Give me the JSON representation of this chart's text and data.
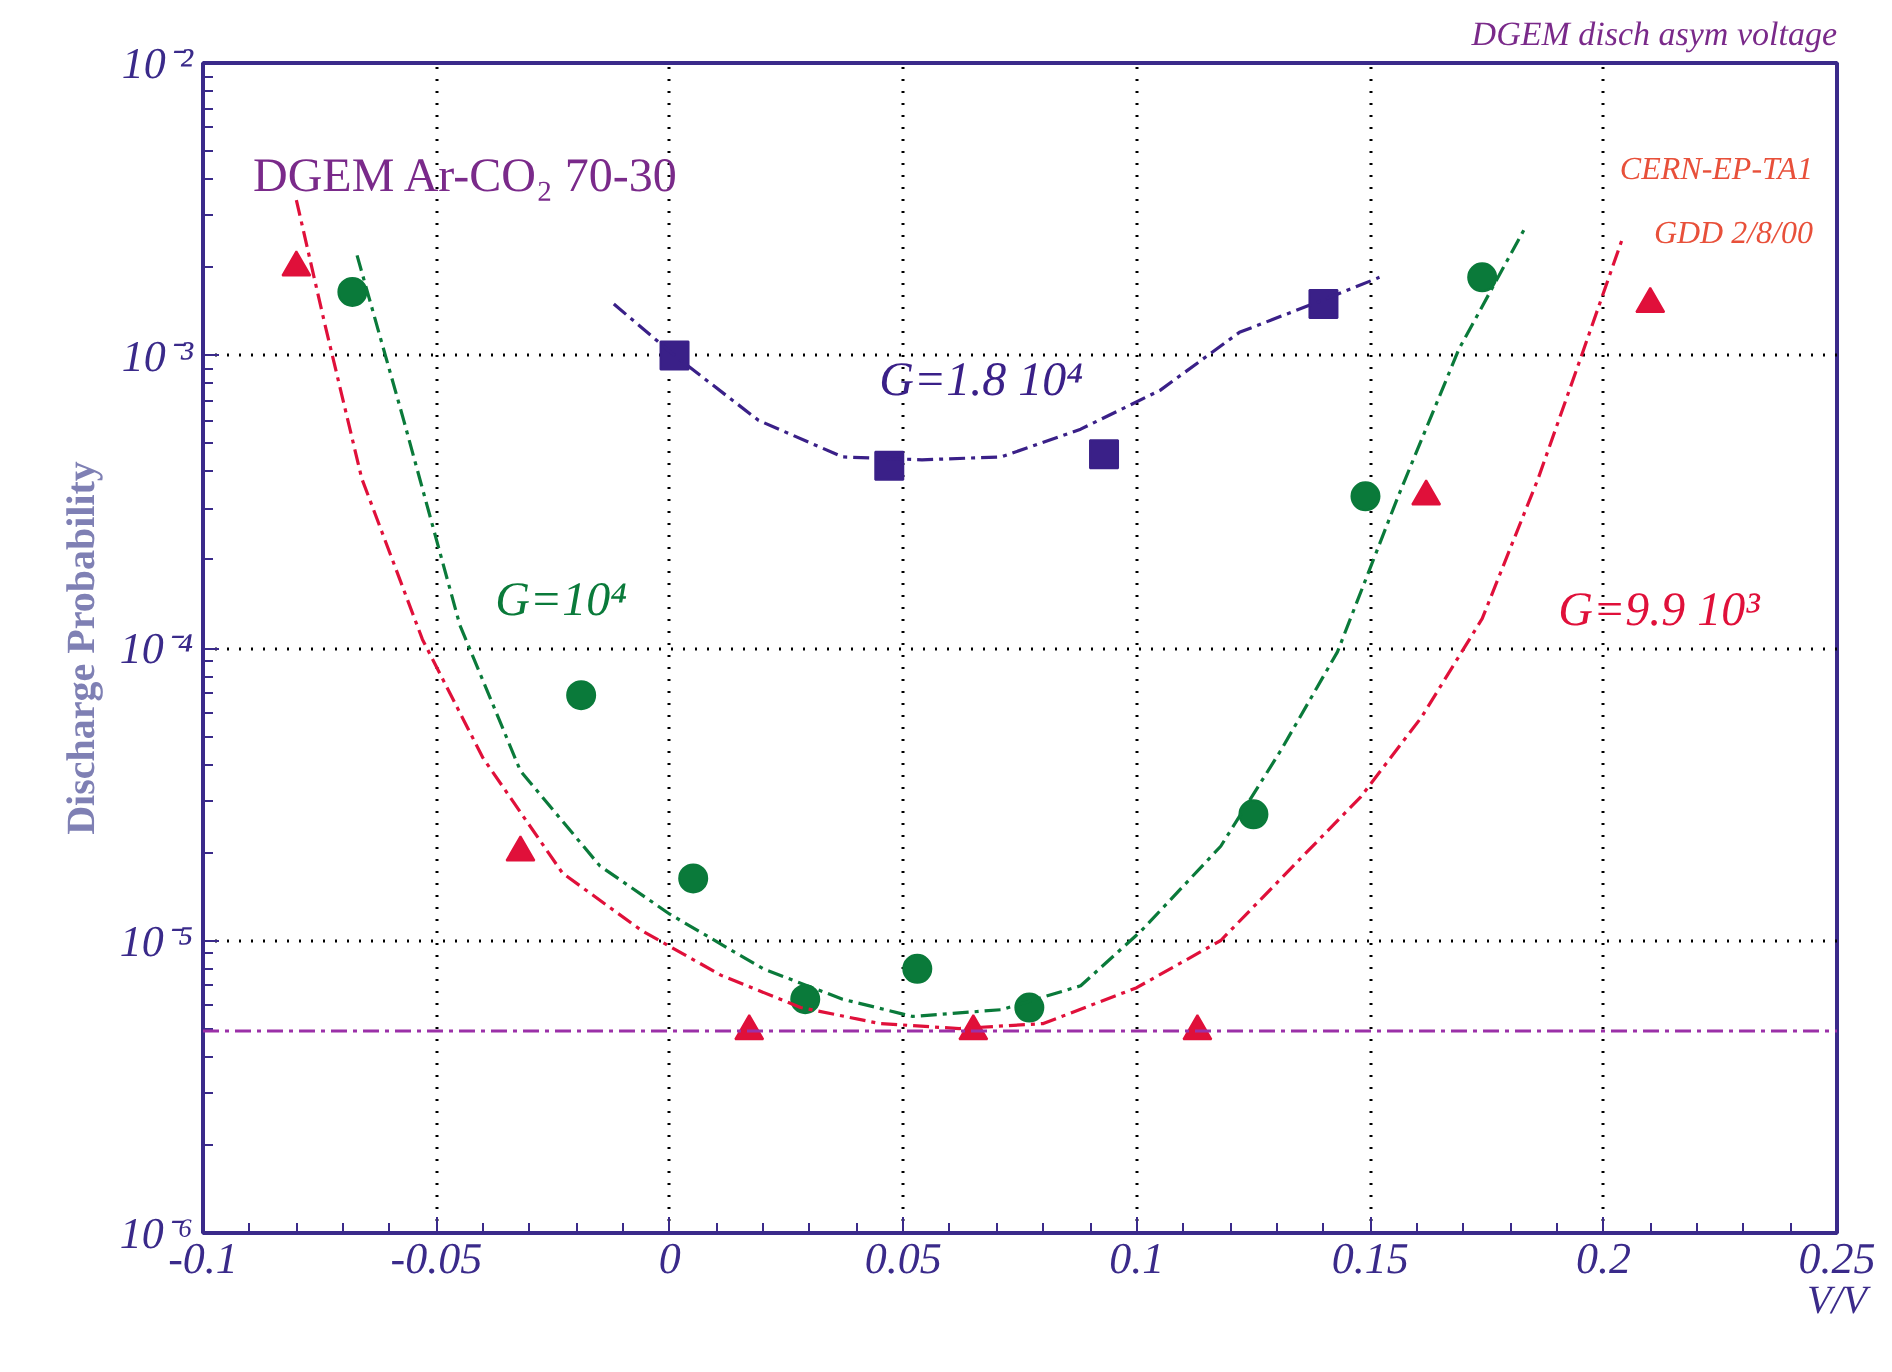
{
  "chart_data": {
    "type": "scatter",
    "title": "DGEM disch asym voltage",
    "xlabel": "V/V",
    "ylabel": "Discharge Probability",
    "log": "y",
    "grid": true,
    "xlim": [
      -0.1,
      0.25
    ],
    "xticks": [
      -0.1,
      -0.05,
      0,
      0.05,
      0.1,
      0.15,
      0.2,
      0.25
    ],
    "ylim": [
      1e-06,
      0.01
    ],
    "yticks": [
      {
        "value": 1e-06,
        "label": "10⁻⁶"
      },
      {
        "value": 1e-05,
        "label": "10⁻⁵"
      },
      {
        "value": 0.0001,
        "label": "10⁻⁴"
      },
      {
        "value": 0.001,
        "label": "10⁻³"
      },
      {
        "value": 0.01,
        "label": "10⁻²"
      }
    ],
    "series": [
      {
        "marker": "square",
        "color": "#3a2088",
        "x": [
          0.001,
          0.047,
          0.093,
          0.14
        ],
        "values": [
          0.001,
          0.00042,
          0.00046,
          0.0015
        ]
      },
      {
        "marker": "circle",
        "color": "#0a7a3a",
        "x": [
          -0.068,
          -0.019,
          0.005,
          0.029,
          0.053,
          0.077,
          0.125,
          0.149,
          0.174
        ],
        "values": [
          0.00165,
          6.9e-05,
          1.63e-05,
          6.3e-06,
          8e-06,
          5.9e-06,
          2.7e-05,
          0.00033,
          0.00185
        ]
      },
      {
        "marker": "triangle",
        "color": "#e0103a",
        "x": [
          -0.08,
          -0.032,
          0.017,
          0.065,
          0.113,
          0.162,
          0.21
        ],
        "values": [
          0.002,
          2e-05,
          4.9e-06,
          4.9e-06,
          4.9e-06,
          0.00033,
          0.0015
        ]
      },
      {
        "type": "line",
        "line_style": "dashed",
        "color": "#3a2088",
        "x": [
          -0.012,
          0.001,
          0.019,
          0.037,
          0.054,
          0.071,
          0.088,
          0.105,
          0.122,
          0.14,
          0.152
        ],
        "values": [
          0.0015,
          0.001,
          0.0006,
          0.00045,
          0.00044,
          0.00045,
          0.00056,
          0.00076,
          0.0012,
          0.00155,
          0.00185
        ]
      },
      {
        "type": "line",
        "line_style": "dashed",
        "color": "#0a7a3a",
        "x": [
          -0.067,
          -0.057,
          -0.045,
          -0.032,
          -0.015,
          0,
          0.02,
          0.037,
          0.052,
          0.071,
          0.088,
          0.101,
          0.118,
          0.131,
          0.143,
          0.156,
          0.169,
          0.183
        ],
        "values": [
          0.0022,
          0.0006,
          0.00012,
          3.8e-05,
          1.8e-05,
          1.23e-05,
          8e-06,
          6.3e-06,
          5.5e-06,
          5.8e-06,
          7e-06,
          1.08e-05,
          2.1e-05,
          4.5e-05,
          9.7e-05,
          0.00033,
          0.00105,
          0.0027
        ]
      },
      {
        "type": "line",
        "line_style": "dashed",
        "color": "#e0103a",
        "x": [
          -0.08,
          -0.074,
          -0.066,
          -0.053,
          -0.04,
          -0.023,
          -0.006,
          0.011,
          0.028,
          0.045,
          0.062,
          0.08,
          0.1,
          0.118,
          0.135,
          0.148,
          0.161,
          0.174,
          0.186,
          0.195,
          0.204
        ],
        "values": [
          0.0034,
          0.0013,
          0.00038,
          0.000107,
          4.2e-05,
          1.7e-05,
          1.08e-05,
          7.6e-06,
          5.9e-06,
          5.2e-06,
          5e-06,
          5.2e-06,
          6.9e-06,
          1e-05,
          1.9e-05,
          3.1e-05,
          5.8e-05,
          0.000126,
          0.00038,
          0.00097,
          0.0025
        ]
      }
    ],
    "ref_lines": [
      {
        "axis": "y",
        "value": 4.9e-06,
        "color": "#9b30a8",
        "line_style": "dashed"
      }
    ],
    "annotations": [
      "DGEM   Ar-CO₂ 70-30",
      "CERN-EP-TA1",
      "GDD 2/8/00",
      "G=1.8 10⁴",
      "G=10⁴",
      "G=9.9 10³"
    ]
  }
}
